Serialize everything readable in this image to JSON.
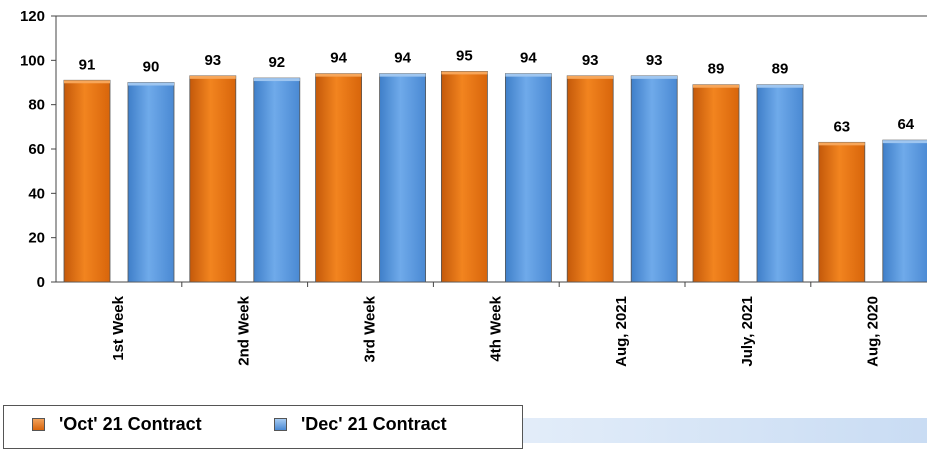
{
  "chart_data": {
    "type": "bar",
    "categories": [
      "1st Week",
      "2nd Week",
      "3rd Week",
      "4th Week",
      "Aug, 2021",
      "July, 2021",
      "Aug, 2020"
    ],
    "series": [
      {
        "name": "'Oct' 21 Contract",
        "color": "#e8730f",
        "values": [
          91,
          93,
          94,
          95,
          93,
          89,
          63
        ]
      },
      {
        "name": "'Dec' 21 Contract",
        "color": "#5b9be0",
        "values": [
          90,
          92,
          94,
          94,
          93,
          89,
          64
        ]
      }
    ],
    "yticks": [
      0,
      20,
      40,
      60,
      80,
      100,
      120
    ],
    "ylim": [
      0,
      120
    ],
    "title": "",
    "xlabel": "",
    "ylabel": "",
    "legend_position": "bottom-left",
    "grid": false
  }
}
